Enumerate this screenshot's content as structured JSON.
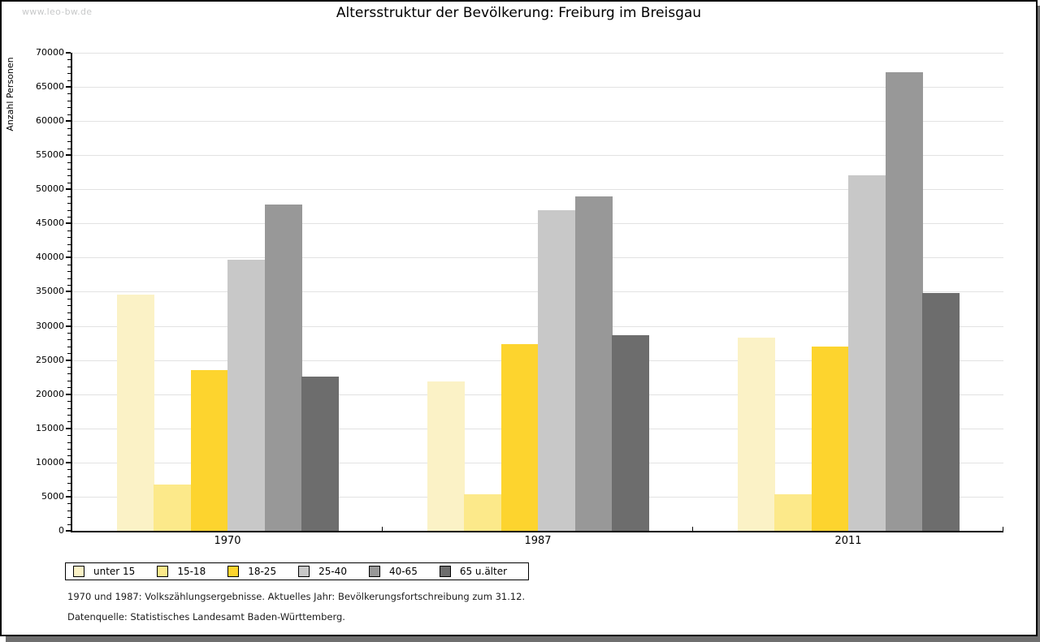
{
  "watermark": "www.leo-bw.de",
  "chart_data": {
    "type": "bar",
    "title": "Altersstruktur der Bevölkerung: Freiburg im Breisgau",
    "ylabel": "Anzahl Personen",
    "xlabel": "",
    "categories": [
      "1970",
      "1987",
      "2011"
    ],
    "series": [
      {
        "name": "unter 15",
        "color": "#FBF2C6",
        "values": [
          34600,
          21900,
          28300
        ]
      },
      {
        "name": "15-18",
        "color": "#FCE98A",
        "values": [
          6800,
          5300,
          5300
        ]
      },
      {
        "name": "18-25",
        "color": "#FDD42E",
        "values": [
          23500,
          27300,
          27000
        ]
      },
      {
        "name": "25-40",
        "color": "#C8C8C8",
        "values": [
          39700,
          47000,
          52000
        ]
      },
      {
        "name": "40-65",
        "color": "#989898",
        "values": [
          47800,
          49000,
          67200
        ]
      },
      {
        "name": "65 u.älter",
        "color": "#6D6D6D",
        "values": [
          22600,
          28600,
          34800
        ]
      }
    ],
    "ylim": [
      0,
      70000
    ],
    "ytick_step": 5000,
    "ytick_minor_step": 1000,
    "grid": true,
    "legend_position": "bottom-left"
  },
  "notes": {
    "line1": "1970 und 1987: Volkszählungsergebnisse. Aktuelles Jahr: Bevölkerungsfortschreibung zum 31.12.",
    "line2": "Datenquelle: Statistisches Landesamt Baden-Württemberg."
  },
  "colors": {
    "axis": "#000000",
    "grid": "#E2E2E2",
    "watermark": "#C8C9CA",
    "shadow": "#6F6F6F",
    "background": "#FFFFFF"
  }
}
